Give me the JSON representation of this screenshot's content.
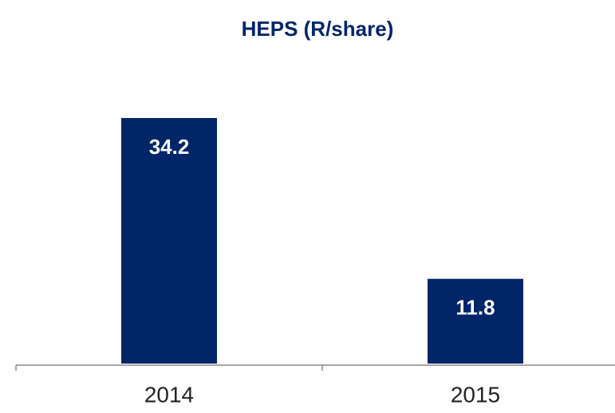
{
  "chart_data": {
    "type": "bar",
    "title": "HEPS (R/share)",
    "categories": [
      "2014",
      "2015"
    ],
    "values": [
      34.2,
      11.8
    ],
    "color": "#002569"
  }
}
